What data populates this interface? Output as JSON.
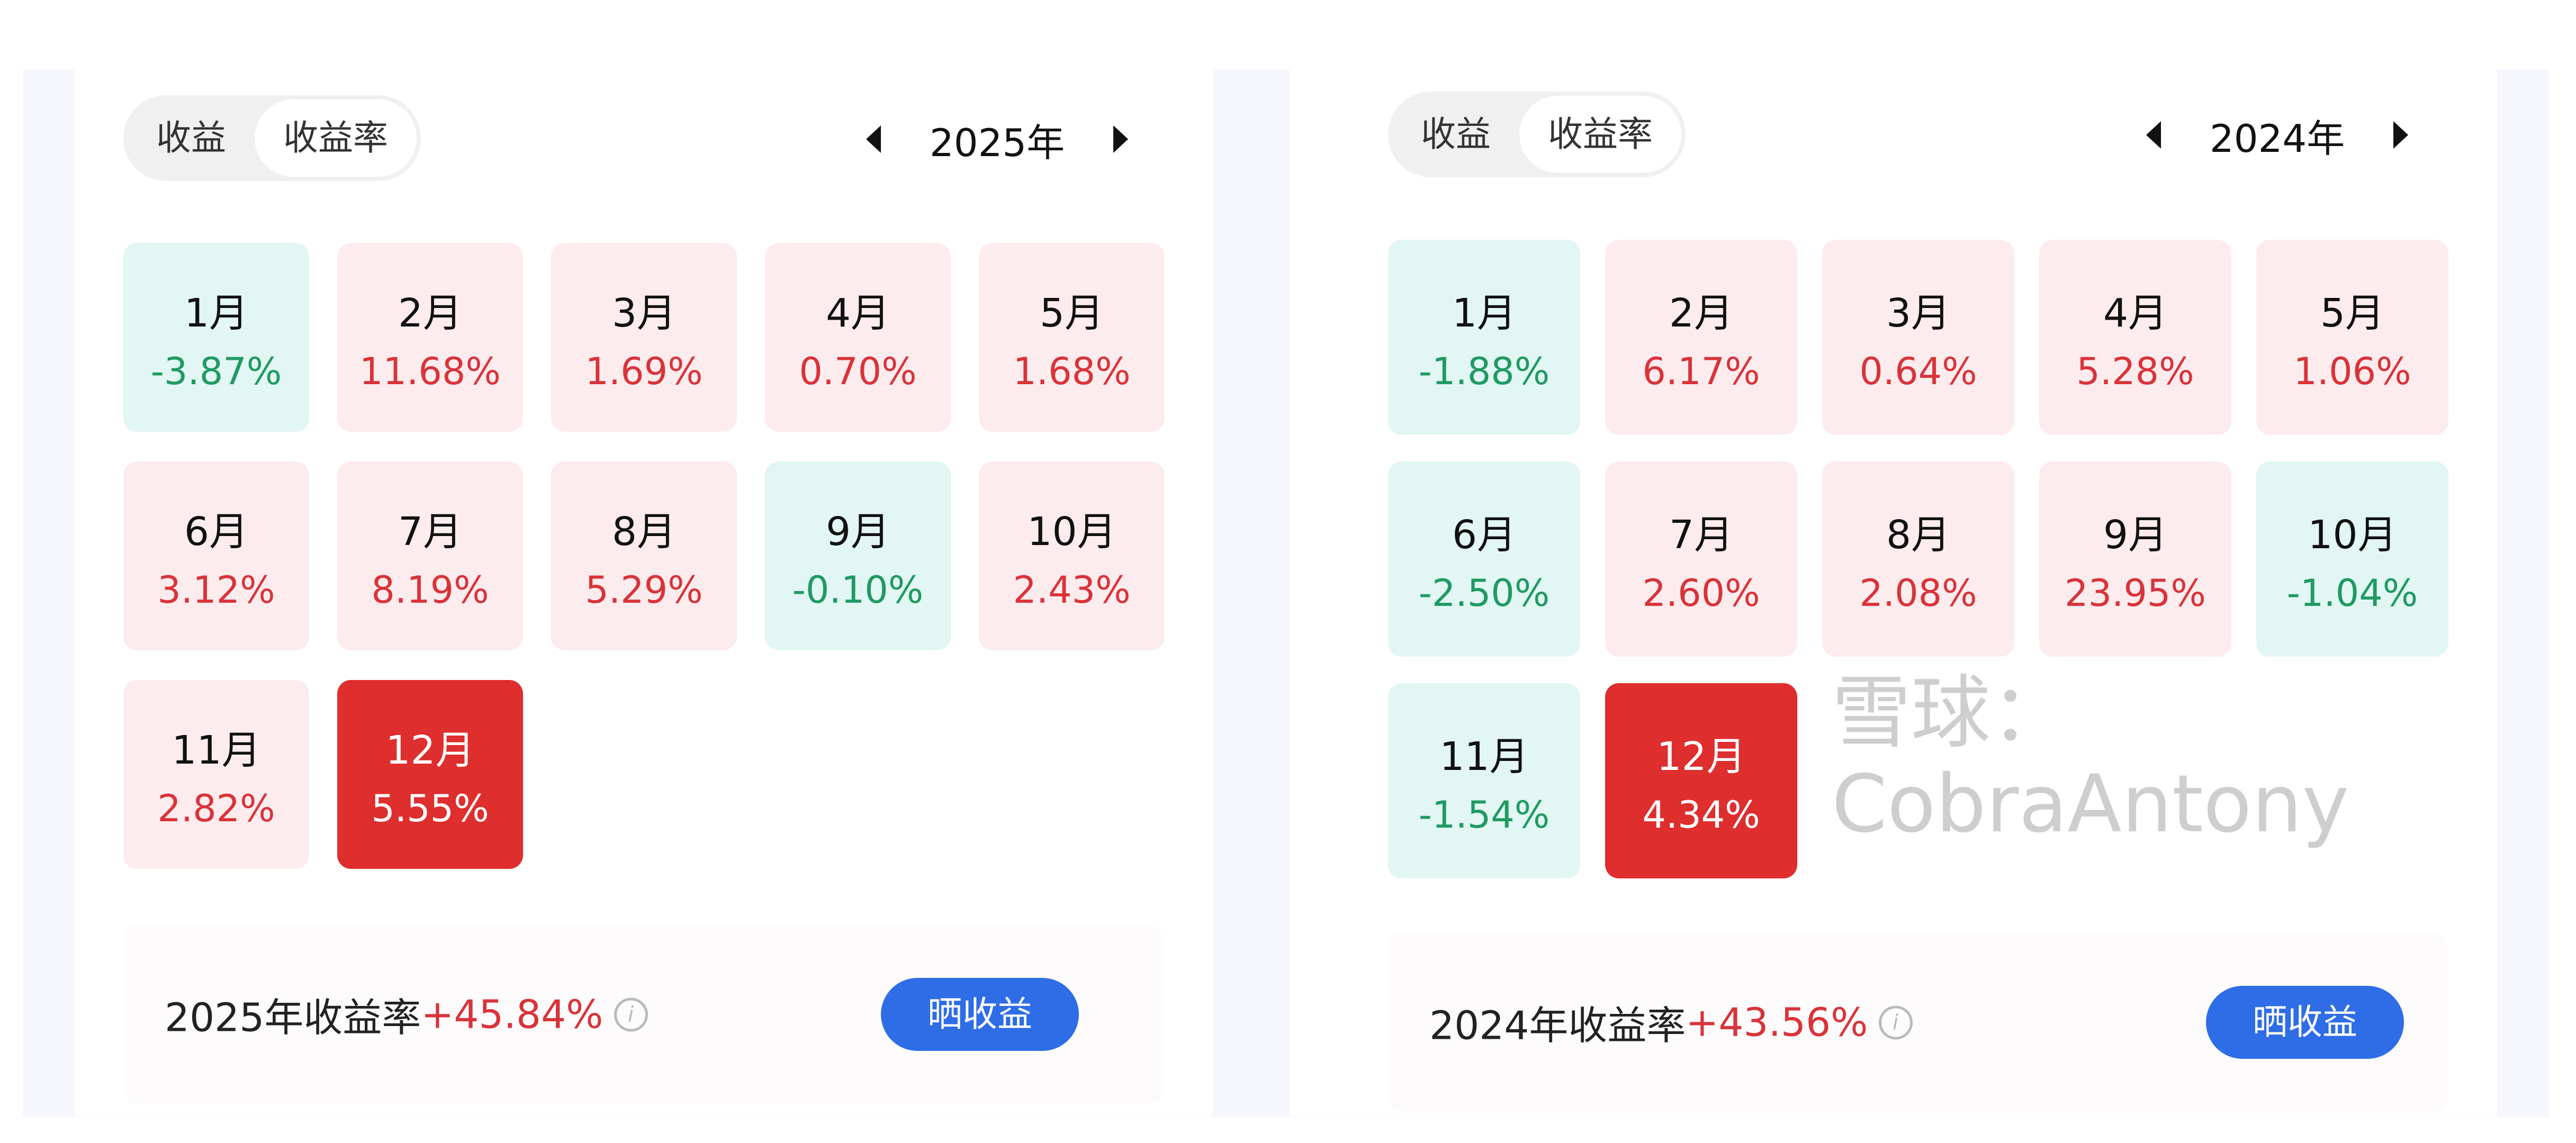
{
  "colors": {
    "up_text": "#d9333a",
    "up_bg": "#fdecee",
    "down_text": "#1f9a63",
    "down_bg": "#e2f6f3",
    "selected_bg": "#de2e2e",
    "button": "#2f6de6"
  },
  "panels": [
    {
      "toggle": [
        "收益",
        "收益率"
      ],
      "active_toggle": 1,
      "year": "2025年",
      "summary_label": "2025年收益率",
      "summary_value": "+45.84%",
      "share_label": "晒收益",
      "selected_month": 12,
      "months": [
        {
          "m": "1月",
          "v": "-3.87%"
        },
        {
          "m": "2月",
          "v": "11.68%"
        },
        {
          "m": "3月",
          "v": "1.69%"
        },
        {
          "m": "4月",
          "v": "0.70%"
        },
        {
          "m": "5月",
          "v": "1.68%"
        },
        {
          "m": "6月",
          "v": "3.12%"
        },
        {
          "m": "7月",
          "v": "8.19%"
        },
        {
          "m": "8月",
          "v": "5.29%"
        },
        {
          "m": "9月",
          "v": "-0.10%"
        },
        {
          "m": "10月",
          "v": "2.43%"
        },
        {
          "m": "11月",
          "v": "2.82%"
        },
        {
          "m": "12月",
          "v": "5.55%"
        }
      ]
    },
    {
      "toggle": [
        "收益",
        "收益率"
      ],
      "active_toggle": 1,
      "year": "2024年",
      "summary_label": "2024年收益率",
      "summary_value": "+43.56%",
      "share_label": "晒收益",
      "selected_month": 12,
      "months": [
        {
          "m": "1月",
          "v": "-1.88%"
        },
        {
          "m": "2月",
          "v": "6.17%"
        },
        {
          "m": "3月",
          "v": "0.64%"
        },
        {
          "m": "4月",
          "v": "5.28%"
        },
        {
          "m": "5月",
          "v": "1.06%"
        },
        {
          "m": "6月",
          "v": "-2.50%"
        },
        {
          "m": "7月",
          "v": "2.60%"
        },
        {
          "m": "8月",
          "v": "2.08%"
        },
        {
          "m": "9月",
          "v": "23.95%"
        },
        {
          "m": "10月",
          "v": "-1.04%"
        },
        {
          "m": "11月",
          "v": "-1.54%"
        },
        {
          "m": "12月",
          "v": "4.34%"
        }
      ]
    }
  ],
  "watermark": "雪球：CobraAntony"
}
